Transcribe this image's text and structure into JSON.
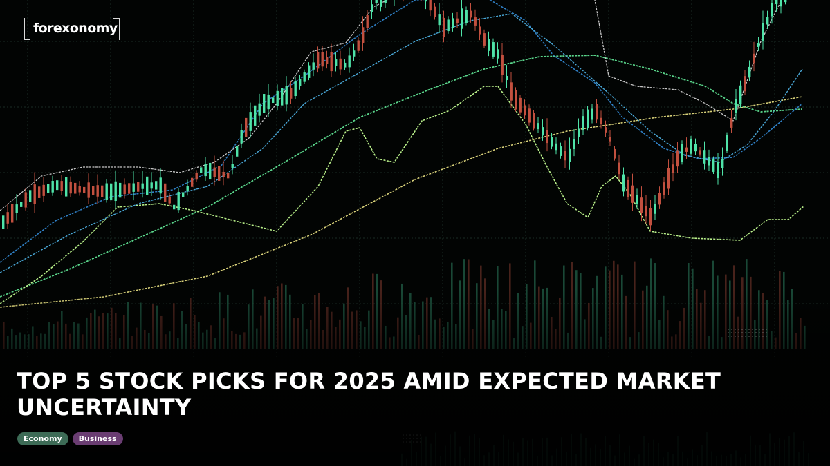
{
  "brand": {
    "logo_text": "forexonomy"
  },
  "article": {
    "title": "TOP 5 STOCK PICKS FOR 2025 AMID EXPECTED MARKET UNCERTAINTY",
    "tags": [
      {
        "label": "Economy",
        "color": "#3d6b56"
      },
      {
        "label": "Business",
        "color": "#6a3d72"
      }
    ]
  },
  "hero_image": {
    "kind": "candlestick-chart-photo",
    "colors": {
      "up": "#4fe3a8",
      "down": "#c2503f",
      "ma_fast": "#b9f08a",
      "ma_mid": "#59d48a",
      "ma_slow": "#d9d27a",
      "band_upper": "#c8c8c8",
      "band_blue": "#2f7fc4",
      "band_lightblue": "#49a7d6",
      "grid": "#1b2b24"
    }
  }
}
